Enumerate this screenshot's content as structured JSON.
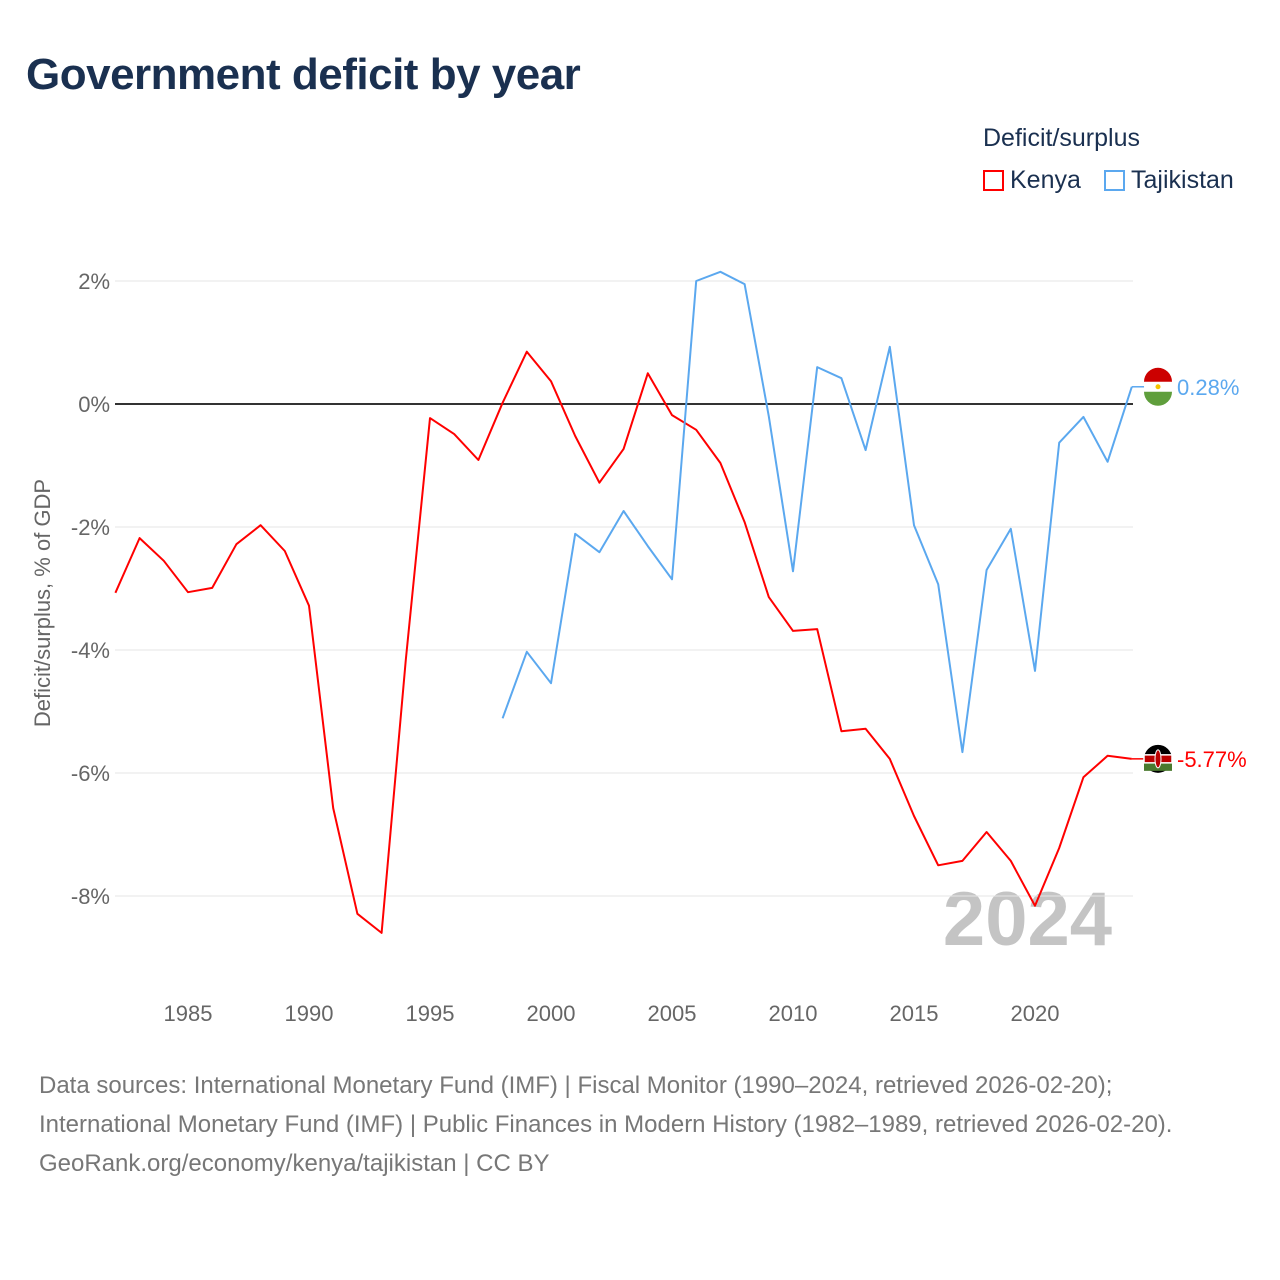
{
  "title": "Government deficit by year",
  "legend": {
    "title": "Deficit/surplus",
    "items": [
      "Kenya",
      "Tajikistan"
    ]
  },
  "footer": {
    "line1": "Data sources: International Monetary Fund (IMF) | Fiscal Monitor (1990–2024, retrieved 2026-02-20);",
    "line2": "International Monetary Fund (IMF) | Public Finances in Modern History (1982–1989, retrieved 2026-02-20).",
    "line3": "GeoRank.org/economy/kenya/tajikistan | CC BY"
  },
  "chart_data": {
    "type": "line",
    "title": "Government deficit by year",
    "xlabel": "",
    "ylabel": "Deficit/surplus, % of GDP",
    "xlim": [
      1982,
      2024
    ],
    "ylim": [
      -9,
      2.3
    ],
    "x_ticks": [
      1985,
      1990,
      1995,
      2000,
      2005,
      2010,
      2015,
      2020
    ],
    "y_ticks": [
      2,
      0,
      -2,
      -4,
      -6,
      -8
    ],
    "y_tick_labels": [
      "2%",
      "0%",
      "-2%",
      "-4%",
      "-6%",
      "-8%"
    ],
    "year_watermark": "2024",
    "series": [
      {
        "name": "Kenya",
        "color": "#ff0000",
        "start": 1982,
        "end_label": "-5.77%",
        "values": [
          -3.07,
          -2.18,
          -2.55,
          -3.06,
          -2.99,
          -2.28,
          -1.97,
          -2.39,
          -3.28,
          -6.57,
          -8.29,
          -8.6,
          -4.16,
          -0.23,
          -0.49,
          -0.91,
          0.02,
          0.85,
          0.37,
          -0.52,
          -1.28,
          -0.73,
          0.5,
          -0.18,
          -0.42,
          -0.96,
          -1.92,
          -3.14,
          -3.69,
          -3.66,
          -5.32,
          -5.28,
          -5.77,
          -6.7,
          -7.5,
          -7.43,
          -6.96,
          -7.43,
          -8.16,
          -7.22,
          -6.07,
          -5.72,
          -5.77
        ]
      },
      {
        "name": "Tajikistan",
        "color": "#5ba8ef",
        "start": 1998,
        "end_label": "0.28%",
        "values": [
          -5.11,
          -4.03,
          -4.54,
          -2.11,
          -2.41,
          -1.74,
          -2.31,
          -2.85,
          2.0,
          2.15,
          1.95,
          -0.2,
          -2.72,
          0.6,
          0.42,
          -0.75,
          0.93,
          -1.97,
          -2.93,
          -5.66,
          -2.7,
          -2.03,
          -4.34,
          -0.63,
          -0.21,
          -0.94,
          0.28
        ]
      }
    ]
  }
}
